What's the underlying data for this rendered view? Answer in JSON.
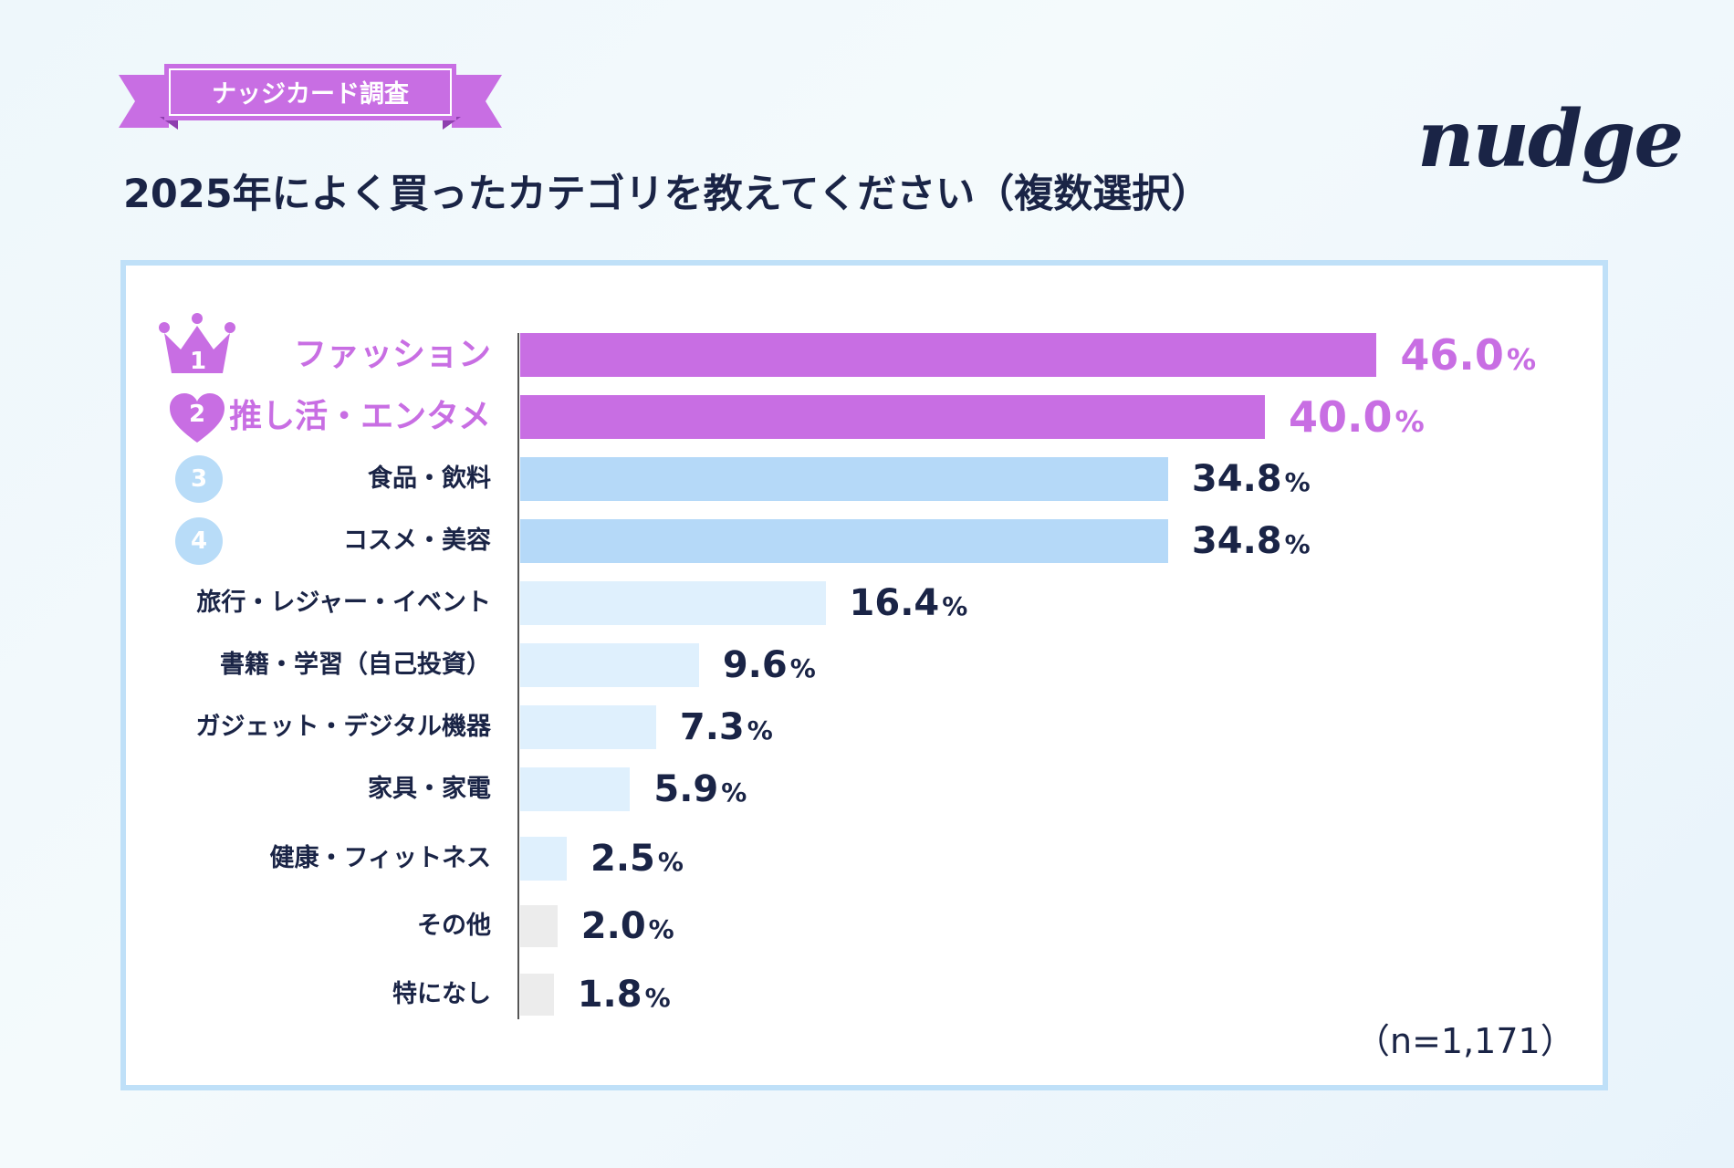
{
  "header": {
    "banner": "ナッジカード調査",
    "title": "2025年によく買ったカテゴリを教えてください（複数選択）",
    "logo": "nudge"
  },
  "colors": {
    "top": "#c86ee3",
    "blue": "#b5d9f8",
    "light_blue": "#dff0fd",
    "gray": "#ececec",
    "navy": "#1a2446"
  },
  "chart_data": {
    "type": "bar",
    "orientation": "horizontal",
    "categories": [
      "ファッション",
      "推し活・エンタメ",
      "食品・飲料",
      "コスメ・美容",
      "旅行・レジャー・イベント",
      "書籍・学習（自己投資）",
      "ガジェット・デジタル機器",
      "家具・家電",
      "健康・フィットネス",
      "その他",
      "特になし"
    ],
    "values": [
      46.0,
      40.0,
      34.8,
      34.8,
      16.4,
      9.6,
      7.3,
      5.9,
      2.5,
      2.0,
      1.8
    ],
    "value_labels": [
      "46.0",
      "40.0",
      "34.8",
      "34.8",
      "16.4",
      "9.6",
      "7.3",
      "5.9",
      "2.5",
      "2.0",
      "1.8"
    ],
    "unit": "%",
    "ranks": [
      "1",
      "2",
      "3",
      "4"
    ],
    "xlim": [
      0,
      50
    ],
    "title": "2025年によく買ったカテゴリを教えてください（複数選択）",
    "note": "（n=1,171）"
  }
}
